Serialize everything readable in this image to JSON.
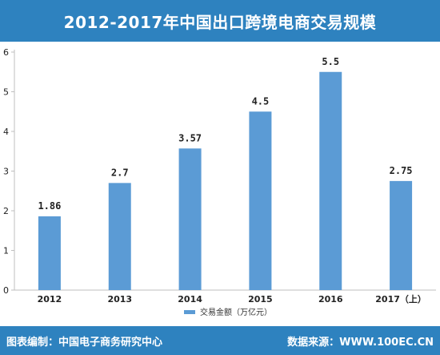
{
  "header": {
    "title": "2012-2017年中国出口跨境电商交易规模"
  },
  "footer": {
    "left_text": "图表编制：中国电子商务研究中心",
    "right_text": "数据来源：WWW.100EC.CN"
  },
  "colors": {
    "title_bar": "#2e82bf",
    "bar_fill": "#5b9bd5",
    "axis": "#bfbfbf"
  },
  "chart_data": {
    "type": "bar",
    "title": "2012-2017年中国出口跨境电商交易规模",
    "categories": [
      "2012",
      "2013",
      "2014",
      "2015",
      "2016",
      "2017（上）"
    ],
    "series": [
      {
        "name": "交易金额（万亿元）",
        "values": [
          1.86,
          2.7,
          3.57,
          4.5,
          5.5,
          2.75
        ],
        "labels": [
          "1.86",
          "2.7",
          "3.57",
          "4.5",
          "5.5",
          "2.75"
        ]
      }
    ],
    "yticks": [
      "0",
      "1",
      "2",
      "3",
      "4",
      "5",
      "6"
    ],
    "ylim": [
      0,
      6
    ],
    "grid": false,
    "legend": "bottom-center"
  }
}
